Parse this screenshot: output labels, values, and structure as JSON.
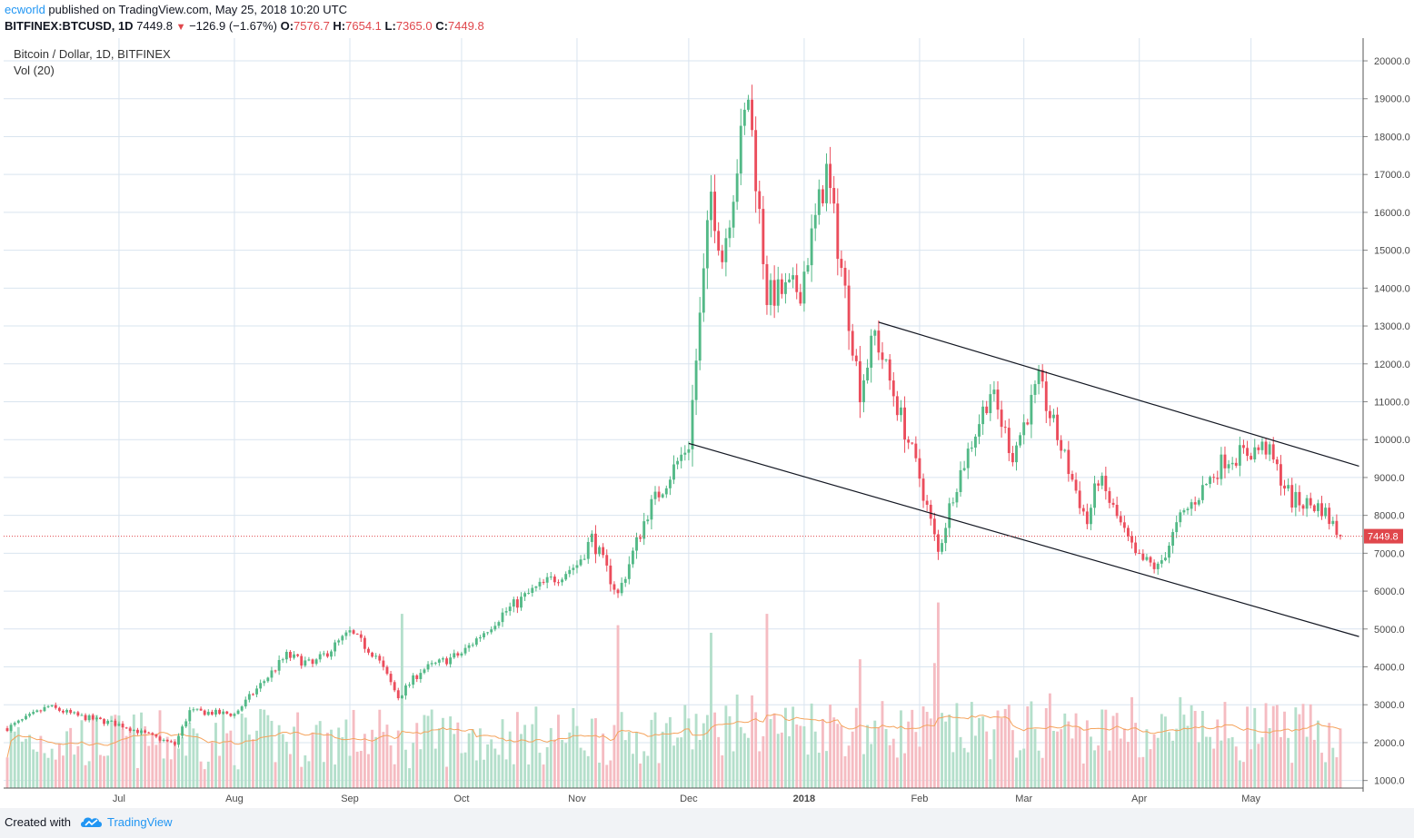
{
  "header": {
    "user": "ecworld",
    "published_text": "published on TradingView.com, May 25, 2018 10:20 UTC",
    "symbol": "BITFINEX:BTCUSD, 1D",
    "last": "7449.8",
    "change": "−126.9 (−1.67%)",
    "o_label": "O:",
    "o_value": "7576.7",
    "h_label": "H:",
    "h_value": "7654.1",
    "l_label": "L:",
    "l_value": "7365.0",
    "c_label": "C:",
    "c_value": "7449.8"
  },
  "legend": {
    "series_title": "Bitcoin / Dollar, 1D, BITFINEX",
    "volume_title": "Vol (20)"
  },
  "footer": {
    "created_with": "Created with",
    "brand": "TradingView"
  },
  "colors": {
    "up": "#53b987",
    "down": "#eb4d5c",
    "vol_up": "#b4dfcb",
    "vol_down": "#f5bcc2",
    "ma": "#f5a35c",
    "grid": "#d9e4ef",
    "price_line": "#e0474c"
  },
  "chart_data": {
    "type": "candlestick",
    "title": "Bitcoin / Dollar, 1D, BITFINEX",
    "x_tick_labels": [
      "Jul",
      "Aug",
      "Sep",
      "Oct",
      "Nov",
      "Dec",
      "2018",
      "Feb",
      "Mar",
      "Apr",
      "May"
    ],
    "y_tick_labels": [
      "1000.0",
      "2000.0",
      "3000.0",
      "4000.0",
      "5000.0",
      "6000.0",
      "7000.0",
      "8000.0",
      "9000.0",
      "10000.0",
      "11000.0",
      "12000.0",
      "13000.0",
      "14000.0",
      "15000.0",
      "16000.0",
      "17000.0",
      "18000.0",
      "19000.0",
      "20000.0"
    ],
    "y_range": [
      800,
      20600
    ],
    "date_range": [
      "2017-06-01",
      "2018-05-25"
    ],
    "last_price": 7449.8,
    "last_price_label": "7449.8",
    "price_path": [
      [
        "2017-06-01",
        2380
      ],
      [
        "2017-06-12",
        2950
      ],
      [
        "2017-06-20",
        2700
      ],
      [
        "2017-07-01",
        2480
      ],
      [
        "2017-07-16",
        1950
      ],
      [
        "2017-07-20",
        2830
      ],
      [
        "2017-08-01",
        2750
      ],
      [
        "2017-08-15",
        4300
      ],
      [
        "2017-08-22",
        4050
      ],
      [
        "2017-09-01",
        4900
      ],
      [
        "2017-09-08",
        4300
      ],
      [
        "2017-09-14",
        3200
      ],
      [
        "2017-09-20",
        3900
      ],
      [
        "2017-10-01",
        4350
      ],
      [
        "2017-10-12",
        5400
      ],
      [
        "2017-10-20",
        6000
      ],
      [
        "2017-11-01",
        6700
      ],
      [
        "2017-11-05",
        7400
      ],
      [
        "2017-11-12",
        5900
      ],
      [
        "2017-11-20",
        8100
      ],
      [
        "2017-12-01",
        9900
      ],
      [
        "2017-12-07",
        16500
      ],
      [
        "2017-12-10",
        14800
      ],
      [
        "2017-12-17",
        19100
      ],
      [
        "2017-12-22",
        13800
      ],
      [
        "2017-12-31",
        14000
      ],
      [
        "2018-01-07",
        17100
      ],
      [
        "2018-01-16",
        11300
      ],
      [
        "2018-01-20",
        12800
      ],
      [
        "2018-02-01",
        9000
      ],
      [
        "2018-02-06",
        7000
      ],
      [
        "2018-02-10",
        8600
      ],
      [
        "2018-02-20",
        11300
      ],
      [
        "2018-02-26",
        9600
      ],
      [
        "2018-03-05",
        11500
      ],
      [
        "2018-03-18",
        7800
      ],
      [
        "2018-03-21",
        9000
      ],
      [
        "2018-03-31",
        6900
      ],
      [
        "2018-04-06",
        6600
      ],
      [
        "2018-04-12",
        7900
      ],
      [
        "2018-04-24",
        9500
      ],
      [
        "2018-05-05",
        9800
      ],
      [
        "2018-05-12",
        8400
      ],
      [
        "2018-05-20",
        8200
      ],
      [
        "2018-05-25",
        7449.8
      ]
    ],
    "volume_spikes": [
      [
        "2017-09-15",
        5400
      ],
      [
        "2017-11-12",
        5100
      ],
      [
        "2017-12-07",
        4900
      ],
      [
        "2017-12-22",
        5400
      ],
      [
        "2018-01-16",
        4200
      ],
      [
        "2018-02-06",
        5700
      ],
      [
        "2018-02-05",
        4100
      ],
      [
        "2018-03-08",
        3300
      ],
      [
        "2018-03-30",
        3200
      ],
      [
        "2018-04-12",
        3200
      ]
    ],
    "trendlines": [
      {
        "from": [
          "2017-12-01",
          9900
        ],
        "to": [
          "2018-05-30",
          4800
        ]
      },
      {
        "from": [
          "2018-01-21",
          13100
        ],
        "to": [
          "2018-05-30",
          9300
        ]
      }
    ]
  }
}
